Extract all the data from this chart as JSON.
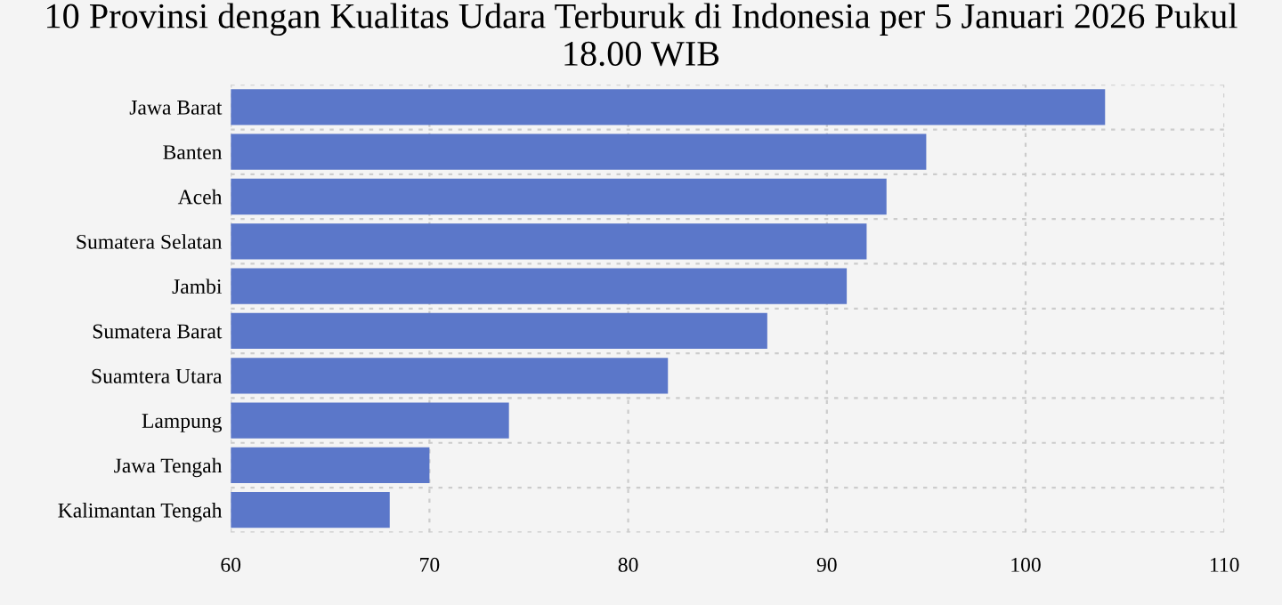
{
  "chart_data": {
    "type": "bar",
    "orientation": "horizontal",
    "title": "10 Provinsi dengan Kualitas Udara Terburuk di Indonesia per 5 Januari 2026 Pukul 18.00 WIB",
    "categories": [
      "Jawa Barat",
      "Banten",
      "Aceh",
      "Sumatera Selatan",
      "Jambi",
      "Sumatera Barat",
      "Suamtera Utara",
      "Lampung",
      "Jawa Tengah",
      "Kalimantan Tengah"
    ],
    "values": [
      104,
      95,
      93,
      92,
      91,
      87,
      82,
      74,
      70,
      68
    ],
    "color": "#5b77c9",
    "xlim": [
      60,
      110
    ],
    "xticks": [
      60,
      70,
      80,
      90,
      100,
      110
    ],
    "grid": true
  }
}
